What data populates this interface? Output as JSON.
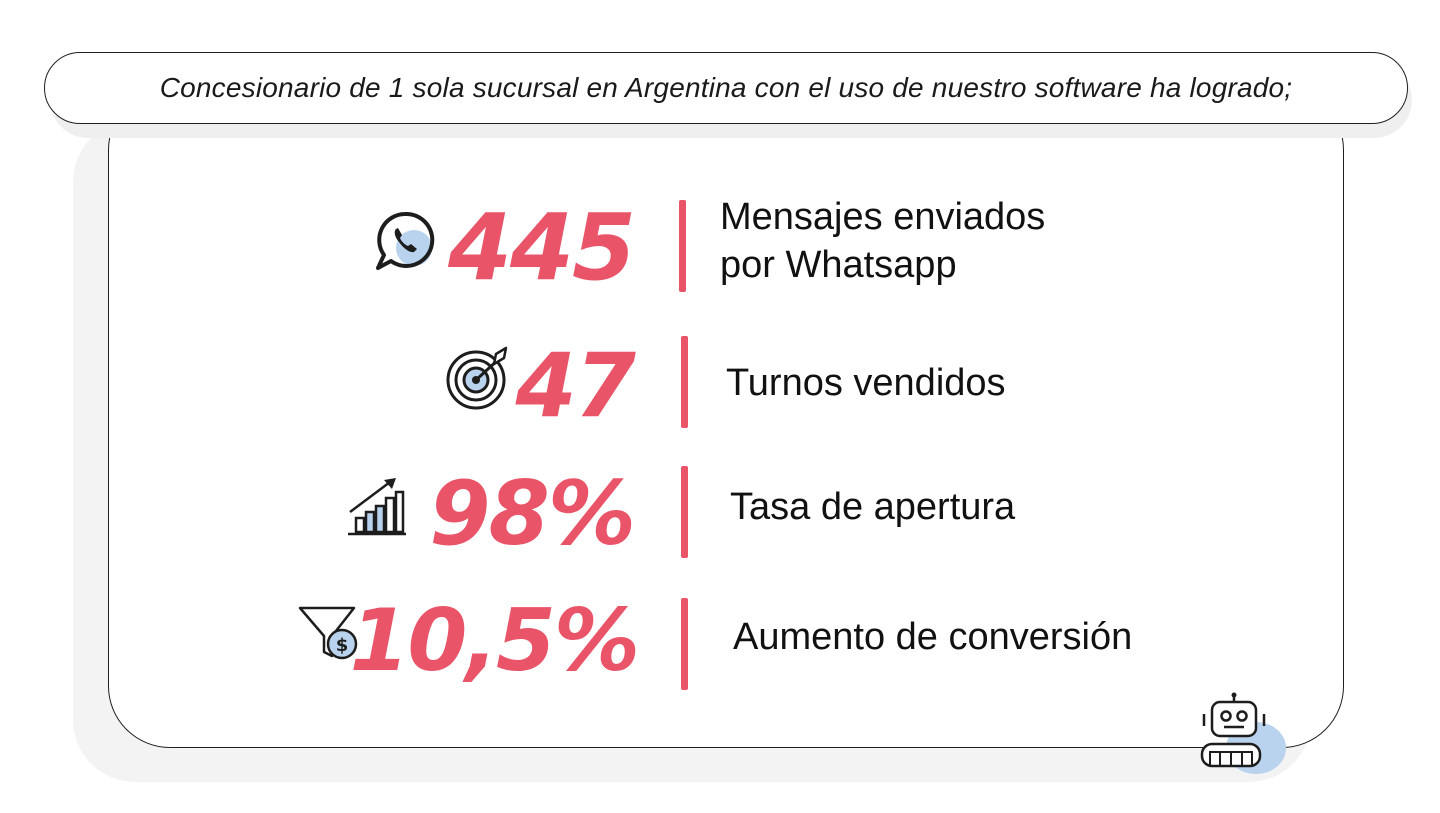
{
  "header": {
    "title": "Concesionario de 1 sola sucursal en Argentina con el uso de nuestro software ha logrado;"
  },
  "stats": [
    {
      "icon": "whatsapp-icon",
      "value": "445",
      "label_line1": "Mensajes enviados",
      "label_line2": "por Whatsapp"
    },
    {
      "icon": "target-icon",
      "value": "47",
      "label": "Turnos vendidos"
    },
    {
      "icon": "growth-chart-icon",
      "value": "98%",
      "label": "Tasa de apertura"
    },
    {
      "icon": "sales-funnel-icon",
      "value": "10,5%",
      "label": "Aumento de conversión"
    }
  ],
  "decoration": {
    "icon": "robot-icon"
  },
  "colors": {
    "accent": "#ea5468",
    "icon_blue": "#b9d3ee",
    "text": "#111111",
    "border": "#1f1f1f"
  }
}
